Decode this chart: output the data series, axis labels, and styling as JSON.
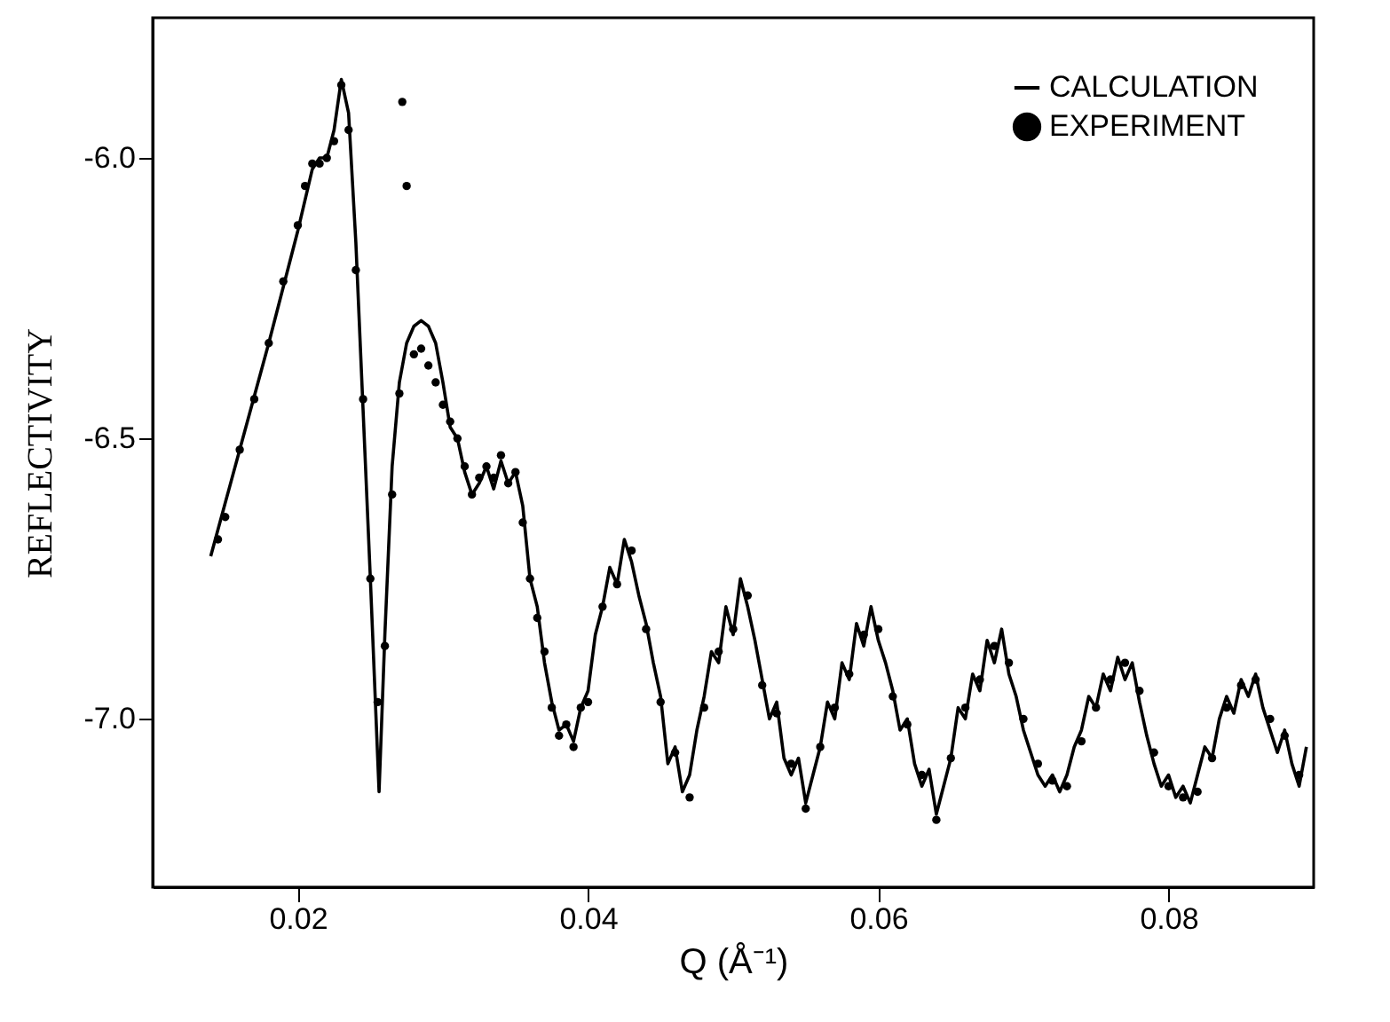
{
  "chart_data": {
    "type": "line",
    "xlabel": "Q (Å⁻¹)",
    "ylabel": "REFLECTIVITY",
    "xlim": [
      0.01,
      0.09
    ],
    "ylim": [
      -7.3,
      -5.75
    ],
    "xticks": [
      0.02,
      0.04,
      0.06,
      0.08
    ],
    "yticks": [
      {
        "value": -6,
        "label": "-6.0"
      },
      {
        "value": -6.5,
        "label": "-6.5"
      },
      {
        "value": -7,
        "label": "-7.0"
      }
    ],
    "grid": false,
    "legend": "top right",
    "series": [
      {
        "name": "CALCULATION",
        "color": "#000000",
        "line_style": "solid",
        "marker": "none",
        "x": [
          0.014,
          0.016,
          0.018,
          0.02,
          0.021,
          0.0215,
          0.022,
          0.0225,
          0.023,
          0.0235,
          0.024,
          0.0245,
          0.025,
          0.0256,
          0.026,
          0.0265,
          0.027,
          0.0275,
          0.028,
          0.0285,
          0.029,
          0.0295,
          0.03,
          0.0305,
          0.031,
          0.0315,
          0.032,
          0.0325,
          0.033,
          0.0335,
          0.034,
          0.0345,
          0.035,
          0.0355,
          0.036,
          0.0365,
          0.037,
          0.0375,
          0.038,
          0.0385,
          0.039,
          0.0395,
          0.04,
          0.0405,
          0.041,
          0.0415,
          0.042,
          0.0425,
          0.043,
          0.0435,
          0.044,
          0.0445,
          0.045,
          0.0455,
          0.046,
          0.0465,
          0.047,
          0.0475,
          0.048,
          0.0485,
          0.049,
          0.0495,
          0.05,
          0.0505,
          0.051,
          0.0515,
          0.052,
          0.0525,
          0.053,
          0.0535,
          0.054,
          0.0545,
          0.055,
          0.0555,
          0.056,
          0.0565,
          0.057,
          0.0575,
          0.058,
          0.0585,
          0.059,
          0.0595,
          0.06,
          0.0605,
          0.061,
          0.0615,
          0.062,
          0.0625,
          0.063,
          0.0635,
          0.064,
          0.0645,
          0.065,
          0.0655,
          0.066,
          0.0665,
          0.067,
          0.0675,
          0.068,
          0.0685,
          0.069,
          0.0695,
          0.07,
          0.0705,
          0.071,
          0.0715,
          0.072,
          0.0725,
          0.073,
          0.0735,
          0.074,
          0.0745,
          0.075,
          0.0755,
          0.076,
          0.0765,
          0.077,
          0.0775,
          0.078,
          0.0785,
          0.079,
          0.0795,
          0.08,
          0.0805,
          0.081,
          0.0815,
          0.082,
          0.0825,
          0.083,
          0.0835,
          0.084,
          0.0845,
          0.085,
          0.0855,
          0.086,
          0.0865,
          0.087,
          0.0875,
          0.088,
          0.0885,
          0.089,
          0.0895
        ],
        "values": [
          -6.71,
          -6.52,
          -6.33,
          -6.13,
          -6.02,
          -6.0,
          -6.0,
          -5.95,
          -5.86,
          -5.92,
          -6.15,
          -6.45,
          -6.75,
          -7.13,
          -6.85,
          -6.55,
          -6.4,
          -6.33,
          -6.3,
          -6.29,
          -6.3,
          -6.33,
          -6.4,
          -6.48,
          -6.5,
          -6.56,
          -6.6,
          -6.58,
          -6.55,
          -6.59,
          -6.54,
          -6.58,
          -6.56,
          -6.62,
          -6.75,
          -6.8,
          -6.9,
          -6.97,
          -7.02,
          -7.01,
          -7.04,
          -6.98,
          -6.95,
          -6.85,
          -6.8,
          -6.73,
          -6.76,
          -6.68,
          -6.72,
          -6.78,
          -6.83,
          -6.9,
          -6.96,
          -7.08,
          -7.05,
          -7.13,
          -7.1,
          -7.02,
          -6.96,
          -6.88,
          -6.9,
          -6.8,
          -6.85,
          -6.75,
          -6.8,
          -6.86,
          -6.93,
          -7.0,
          -6.97,
          -7.07,
          -7.1,
          -7.07,
          -7.15,
          -7.1,
          -7.05,
          -6.97,
          -7.0,
          -6.9,
          -6.93,
          -6.83,
          -6.87,
          -6.8,
          -6.86,
          -6.9,
          -6.95,
          -7.02,
          -7.0,
          -7.08,
          -7.12,
          -7.09,
          -7.17,
          -7.12,
          -7.07,
          -6.98,
          -7.0,
          -6.92,
          -6.95,
          -6.86,
          -6.9,
          -6.84,
          -6.92,
          -6.96,
          -7.02,
          -7.06,
          -7.1,
          -7.12,
          -7.1,
          -7.13,
          -7.1,
          -7.05,
          -7.02,
          -6.96,
          -6.98,
          -6.92,
          -6.95,
          -6.89,
          -6.93,
          -6.9,
          -6.97,
          -7.03,
          -7.08,
          -7.12,
          -7.1,
          -7.14,
          -7.12,
          -7.15,
          -7.1,
          -7.05,
          -7.07,
          -7.0,
          -6.96,
          -6.99,
          -6.93,
          -6.96,
          -6.92,
          -6.98,
          -7.02,
          -7.06,
          -7.02,
          -7.08,
          -7.12,
          -7.05
        ]
      },
      {
        "name": "EXPERIMENT",
        "type": "scatter",
        "color": "#000000",
        "marker": "circle",
        "x": [
          0.0145,
          0.015,
          0.016,
          0.017,
          0.018,
          0.019,
          0.02,
          0.0205,
          0.021,
          0.0215,
          0.022,
          0.0225,
          0.023,
          0.0235,
          0.024,
          0.0245,
          0.025,
          0.0255,
          0.026,
          0.0265,
          0.027,
          0.0272,
          0.0275,
          0.028,
          0.0285,
          0.029,
          0.0295,
          0.03,
          0.0305,
          0.031,
          0.0315,
          0.032,
          0.0325,
          0.033,
          0.0335,
          0.034,
          0.0345,
          0.035,
          0.0355,
          0.036,
          0.0365,
          0.037,
          0.0375,
          0.038,
          0.0385,
          0.039,
          0.0395,
          0.04,
          0.041,
          0.042,
          0.043,
          0.044,
          0.045,
          0.046,
          0.047,
          0.048,
          0.049,
          0.05,
          0.051,
          0.052,
          0.053,
          0.054,
          0.055,
          0.056,
          0.057,
          0.058,
          0.059,
          0.06,
          0.061,
          0.062,
          0.063,
          0.064,
          0.065,
          0.066,
          0.067,
          0.068,
          0.069,
          0.07,
          0.071,
          0.072,
          0.073,
          0.074,
          0.075,
          0.076,
          0.077,
          0.078,
          0.079,
          0.08,
          0.081,
          0.082,
          0.083,
          0.084,
          0.085,
          0.086,
          0.087,
          0.088,
          0.089
        ],
        "values": [
          -6.68,
          -6.64,
          -6.52,
          -6.43,
          -6.33,
          -6.22,
          -6.12,
          -6.05,
          -6.01,
          -6.01,
          -6.0,
          -5.97,
          -5.87,
          -5.95,
          -6.2,
          -6.43,
          -6.75,
          -6.97,
          -6.87,
          -6.6,
          -6.42,
          -5.9,
          -6.05,
          -6.35,
          -6.34,
          -6.37,
          -6.4,
          -6.44,
          -6.47,
          -6.5,
          -6.55,
          -6.6,
          -6.57,
          -6.55,
          -6.57,
          -6.53,
          -6.58,
          -6.56,
          -6.65,
          -6.75,
          -6.82,
          -6.88,
          -6.98,
          -7.03,
          -7.01,
          -7.05,
          -6.98,
          -6.97,
          -6.8,
          -6.76,
          -6.7,
          -6.84,
          -6.97,
          -7.06,
          -7.14,
          -6.98,
          -6.88,
          -6.84,
          -6.78,
          -6.94,
          -6.99,
          -7.08,
          -7.16,
          -7.05,
          -6.98,
          -6.92,
          -6.85,
          -6.84,
          -6.96,
          -7.01,
          -7.1,
          -7.18,
          -7.07,
          -6.98,
          -6.93,
          -6.87,
          -6.9,
          -7.0,
          -7.08,
          -7.11,
          -7.12,
          -7.04,
          -6.98,
          -6.93,
          -6.9,
          -6.95,
          -7.06,
          -7.12,
          -7.14,
          -7.13,
          -7.07,
          -6.98,
          -6.94,
          -6.93,
          -7.0,
          -7.03,
          -7.1
        ]
      }
    ]
  }
}
